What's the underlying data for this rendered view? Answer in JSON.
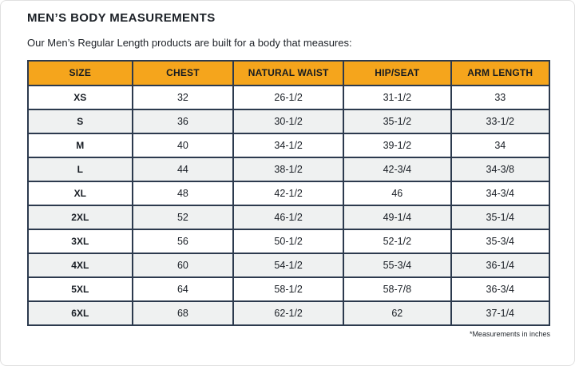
{
  "page": {
    "title": "MEN’S BODY MEASUREMENTS",
    "subtitle": "Our Men’s Regular Length products are built for a body that measures:",
    "footnote": "*Measurements in inches"
  },
  "colors": {
    "header_bg": "#F5A51C",
    "table_border": "#2C3A4E",
    "alt_row_bg": "#EFF1F1",
    "text": "#1C2127"
  },
  "table": {
    "columns": [
      "SIZE",
      "CHEST",
      "NATURAL WAIST",
      "HIP/SEAT",
      "ARM LENGTH"
    ],
    "rows": [
      [
        "XS",
        "32",
        "26-1/2",
        "31-1/2",
        "33"
      ],
      [
        "S",
        "36",
        "30-1/2",
        "35-1/2",
        "33-1/2"
      ],
      [
        "M",
        "40",
        "34-1/2",
        "39-1/2",
        "34"
      ],
      [
        "L",
        "44",
        "38-1/2",
        "42-3/4",
        "34-3/8"
      ],
      [
        "XL",
        "48",
        "42-1/2",
        "46",
        "34-3/4"
      ],
      [
        "2XL",
        "52",
        "46-1/2",
        "49-1/4",
        "35-1/4"
      ],
      [
        "3XL",
        "56",
        "50-1/2",
        "52-1/2",
        "35-3/4"
      ],
      [
        "4XL",
        "60",
        "54-1/2",
        "55-3/4",
        "36-1/4"
      ],
      [
        "5XL",
        "64",
        "58-1/2",
        "58-7/8",
        "36-3/4"
      ],
      [
        "6XL",
        "68",
        "62-1/2",
        "62",
        "37-1/4"
      ]
    ]
  }
}
